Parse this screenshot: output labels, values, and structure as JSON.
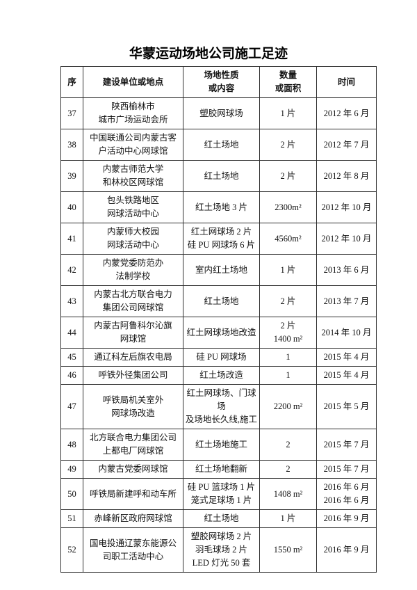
{
  "title": "华蒙运动场地公司施工足迹",
  "table": {
    "headers": [
      [
        "序"
      ],
      [
        "建设单位或地点"
      ],
      [
        "场地性质",
        "或内容"
      ],
      [
        "数量",
        "或面积"
      ],
      [
        "时间"
      ]
    ],
    "rows": [
      {
        "cells": [
          [
            "37"
          ],
          [
            "陕西榆林市",
            "城市广场运动会所"
          ],
          [
            "塑胶网球场"
          ],
          [
            "1 片"
          ],
          [
            "2012 年 6 月"
          ]
        ]
      },
      {
        "cells": [
          [
            "38"
          ],
          [
            "中国联通公司内蒙古客",
            "户活动中心网球馆"
          ],
          [
            "红土场地"
          ],
          [
            "2 片"
          ],
          [
            "2012 年 7 月"
          ]
        ]
      },
      {
        "cells": [
          [
            "39"
          ],
          [
            "内蒙古师范大学",
            "和林校区网球馆"
          ],
          [
            "红土场地"
          ],
          [
            "2 片"
          ],
          [
            "2012 年 8 月"
          ]
        ]
      },
      {
        "cells": [
          [
            "40"
          ],
          [
            "包头铁路地区",
            "网球活动中心"
          ],
          [
            "红土场地 3 片"
          ],
          [
            "2300m²"
          ],
          [
            "2012 年 10 月"
          ]
        ]
      },
      {
        "cells": [
          [
            "41"
          ],
          [
            "内蒙师大校园",
            "网球活动中心"
          ],
          [
            "红土网球场 2 片",
            "硅 PU 网球场 6 片"
          ],
          [
            "4560m²"
          ],
          [
            "2012 年 10 月"
          ]
        ]
      },
      {
        "cells": [
          [
            "42"
          ],
          [
            "内蒙党委防范办",
            "法制学校"
          ],
          [
            "室内红土场地"
          ],
          [
            "1 片"
          ],
          [
            "2013 年 6 月"
          ]
        ]
      },
      {
        "cells": [
          [
            "43"
          ],
          [
            "内蒙古北方联合电力",
            "集团公司网球馆"
          ],
          [
            "红土场地"
          ],
          [
            "2 片"
          ],
          [
            "2013 年 7 月"
          ]
        ]
      },
      {
        "cells": [
          [
            "44"
          ],
          [
            "内蒙古阿鲁科尔沁旗",
            "网球馆"
          ],
          [
            "红土网球场地改造"
          ],
          [
            "2 片",
            "1400 m²"
          ],
          [
            "2014 年 10 月"
          ]
        ]
      },
      {
        "cells": [
          [
            "45"
          ],
          [
            "通辽科左后旗农电局"
          ],
          [
            "硅 PU 网球场"
          ],
          [
            "1"
          ],
          [
            "2015 年 4 月"
          ]
        ]
      },
      {
        "cells": [
          [
            "46"
          ],
          [
            "呼铁外径集团公司"
          ],
          [
            "红土场改造"
          ],
          [
            "1"
          ],
          [
            "2015 年 4 月"
          ]
        ]
      },
      {
        "cells": [
          [
            "47"
          ],
          [
            "呼铁局机关室外",
            "网球场改造"
          ],
          [
            "红土网球场、门球场",
            "及场地长久线,施工"
          ],
          [
            "2200 m²"
          ],
          [
            "2015 年 5 月"
          ]
        ]
      },
      {
        "cells": [
          [
            "48"
          ],
          [
            "北方联合电力集团公司",
            "上都电厂网球馆"
          ],
          [
            "红土场地施工"
          ],
          [
            "2"
          ],
          [
            "2015 年 7 月"
          ]
        ]
      },
      {
        "cells": [
          [
            "49"
          ],
          [
            "内蒙古党委网球馆"
          ],
          [
            "红土场地翻新"
          ],
          [
            "2"
          ],
          [
            "2015 年 7 月"
          ]
        ]
      },
      {
        "cells": [
          [
            "50"
          ],
          [
            "呼铁局新建呼和动车所"
          ],
          [
            "硅 PU 篮球场 1 片",
            "笼式足球场 1 片"
          ],
          [
            "1408 m²"
          ],
          [
            "2016 年 6 月",
            "2016 年 6 月"
          ]
        ]
      },
      {
        "cells": [
          [
            "51"
          ],
          [
            "赤峰新区政府网球馆"
          ],
          [
            "红土场地"
          ],
          [
            "1 片"
          ],
          [
            "2016 年 9 月"
          ]
        ]
      },
      {
        "cells": [
          [
            "52"
          ],
          [
            "国电投通辽蒙东能源公",
            "司职工活动中心"
          ],
          [
            "塑胶网球场 2 片",
            "羽毛球场 2 片",
            "LED 灯光 50 套"
          ],
          [
            "1550 m²"
          ],
          [
            "2016 年 9 月"
          ]
        ]
      }
    ],
    "cell_names": [
      "cell-no",
      "cell-unit",
      "cell-content",
      "cell-qty",
      "cell-time"
    ]
  }
}
